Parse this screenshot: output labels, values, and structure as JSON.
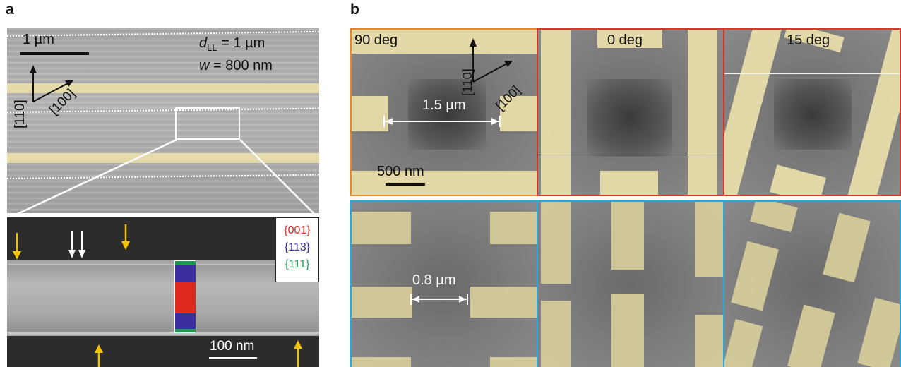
{
  "panel_a": {
    "label": "a",
    "scale_label": "1 µm",
    "dll_var": "d",
    "dll_sub": "LL",
    "dll_value": " = 1 µm",
    "w_var": "w",
    "w_value": " = 800 nm",
    "dir_110": "[110]",
    "dir_100": "[100]",
    "zoom_scale_label": "100 nm",
    "legend": [
      {
        "text": "{001}",
        "color": "#e0281e"
      },
      {
        "text": "{113}",
        "color": "#3a2ea0"
      },
      {
        "text": "{111}",
        "color": "#1e9a52"
      }
    ],
    "facet_colors": {
      "c001": "#e0281e",
      "c113": "#3a2ea0",
      "c111": "#1e9a52"
    },
    "arrow_colors": {
      "yellow": "#f5c400",
      "white": "#ffffff"
    }
  },
  "panel_b": {
    "label": "b",
    "top_labels": [
      "90 deg",
      "0 deg",
      "15 deg"
    ],
    "gap_top": "1.5 µm",
    "gap_bottom": "0.8 µm",
    "scale_label": "500 nm",
    "dir_110": "[110]",
    "dir_100": "[100]",
    "border_colors": {
      "orange": "#e8862a",
      "red": "#d23a2a",
      "blue": "#2aa7d8"
    }
  }
}
